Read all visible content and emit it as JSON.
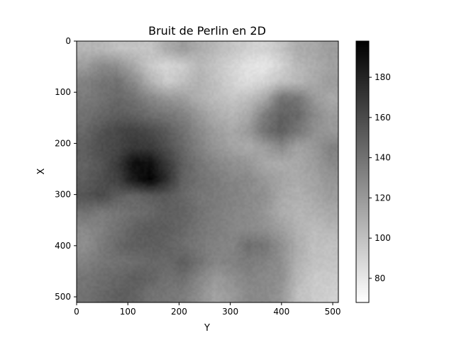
{
  "chart_data": {
    "type": "heatmap",
    "title": "Bruit de Perlin en 2D",
    "xlabel": "Y",
    "ylabel": "X",
    "x_ticks": [
      0,
      100,
      200,
      300,
      400,
      500
    ],
    "y_ticks": [
      0,
      100,
      200,
      300,
      400,
      500
    ],
    "xlim": [
      0,
      511
    ],
    "ylim": [
      511,
      0
    ],
    "y_axis_inverted": true,
    "grid": false,
    "colormap": "gray_r",
    "colorbar": {
      "range": [
        68,
        198
      ],
      "ticks": [
        80,
        100,
        120,
        140,
        160,
        180
      ],
      "low_color": "#ffffff",
      "high_color": "#000000"
    },
    "grid_resolution": 16,
    "values": [
      [
        105,
        105,
        100,
        98,
        98,
        110,
        118,
        110,
        104,
        98,
        92,
        90,
        98,
        110,
        112,
        118
      ],
      [
        118,
        128,
        125,
        112,
        96,
        88,
        94,
        104,
        98,
        90,
        82,
        80,
        90,
        104,
        110,
        116
      ],
      [
        132,
        138,
        140,
        128,
        108,
        94,
        100,
        108,
        100,
        90,
        85,
        90,
        100,
        104,
        112,
        118
      ],
      [
        135,
        140,
        145,
        140,
        130,
        122,
        118,
        108,
        102,
        98,
        100,
        112,
        140,
        138,
        120,
        112
      ],
      [
        140,
        145,
        150,
        148,
        142,
        138,
        132,
        120,
        110,
        105,
        112,
        135,
        148,
        145,
        128,
        118
      ],
      [
        145,
        155,
        162,
        165,
        160,
        152,
        140,
        128,
        118,
        112,
        120,
        140,
        150,
        138,
        125,
        120
      ],
      [
        150,
        158,
        162,
        170,
        168,
        158,
        145,
        132,
        122,
        115,
        110,
        118,
        128,
        115,
        120,
        132
      ],
      [
        148,
        155,
        168,
        192,
        190,
        170,
        150,
        138,
        130,
        125,
        122,
        112,
        110,
        112,
        118,
        128
      ],
      [
        150,
        158,
        165,
        185,
        196,
        175,
        148,
        140,
        135,
        130,
        128,
        120,
        115,
        110,
        115,
        122
      ],
      [
        155,
        160,
        150,
        145,
        150,
        152,
        145,
        138,
        135,
        132,
        128,
        125,
        112,
        108,
        112,
        118
      ],
      [
        140,
        135,
        138,
        142,
        145,
        150,
        148,
        140,
        134,
        130,
        128,
        122,
        110,
        105,
        108,
        112
      ],
      [
        128,
        132,
        140,
        148,
        152,
        150,
        145,
        138,
        134,
        130,
        128,
        125,
        118,
        108,
        102,
        105
      ],
      [
        125,
        135,
        145,
        150,
        150,
        148,
        142,
        136,
        132,
        130,
        142,
        138,
        125,
        110,
        100,
        100
      ],
      [
        132,
        138,
        140,
        142,
        145,
        145,
        150,
        140,
        130,
        132,
        135,
        132,
        125,
        108,
        100,
        98
      ],
      [
        138,
        142,
        145,
        150,
        148,
        140,
        142,
        130,
        120,
        125,
        130,
        128,
        125,
        105,
        95,
        95
      ],
      [
        140,
        145,
        150,
        148,
        140,
        138,
        135,
        125,
        115,
        120,
        128,
        128,
        122,
        100,
        95,
        92
      ]
    ]
  }
}
